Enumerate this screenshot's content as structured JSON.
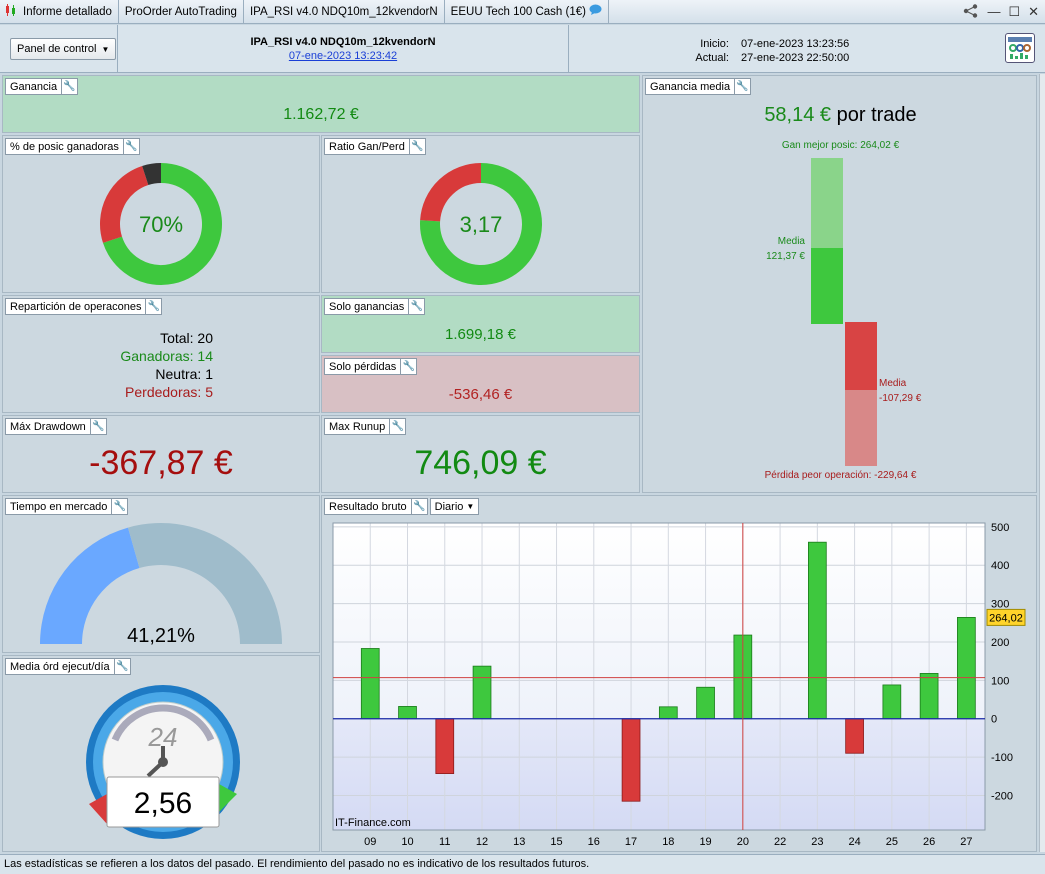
{
  "tabs": [
    {
      "label": "Informe detallado",
      "icon": "candlestick-icon"
    },
    {
      "label": "ProOrder AutoTrading"
    },
    {
      "label": "IPA_RSI v4.0 NDQ10m_12kvendorN"
    },
    {
      "label": "EEUU Tech 100 Cash (1€)",
      "icon": "chat-bubble-icon"
    }
  ],
  "window_controls": [
    "share-icon",
    "minimize-icon",
    "maximize-icon",
    "close-icon"
  ],
  "header": {
    "panel_button": "Panel de control",
    "strategy_title": "IPA_RSI v4.0 NDQ10m_12kvendorN",
    "strategy_date": "07-ene-2023 13:23:42",
    "inicio_label": "Inicio:",
    "inicio_value": "07-ene-2023 13:23:56",
    "actual_label": "Actual:",
    "actual_value": "27-ene-2023 22:50:00"
  },
  "ganancia": {
    "title": "Ganancia",
    "value": "1.162,72 €"
  },
  "pct_ganadoras": {
    "title": "% de posic ganadoras",
    "value": "70%",
    "win_fraction": 0.7,
    "neutral_fraction": 0.05,
    "loss_fraction": 0.25
  },
  "ratio": {
    "title": "Ratio Gan/Perd",
    "value": "3,17",
    "win_fraction": 0.76,
    "loss_fraction": 0.24
  },
  "reparticion": {
    "title": "Repartición de operacones",
    "total_label": "Total:",
    "total": "20",
    "ganadoras_label": "Ganadoras:",
    "ganadoras": "14",
    "neutra_label": "Neutra:",
    "neutra": "1",
    "perdedoras_label": "Perdedoras:",
    "perdedoras": "5"
  },
  "solo_ganancias": {
    "title": "Solo ganancias",
    "value": "1.699,18 €"
  },
  "solo_perdidas": {
    "title": "Solo pérdidas",
    "value": "-536,46 €"
  },
  "max_drawdown": {
    "title": "Máx Drawdown",
    "value": "-367,87 €"
  },
  "max_runup": {
    "title": "Max Runup",
    "value": "746,09 €"
  },
  "ganancia_media": {
    "title": "Ganancia media",
    "value": "58,14 €",
    "suffix": "por trade",
    "best_label": "Gan mejor posic: 264,02 €",
    "media_pos_label": "Media",
    "media_pos_value": "121,37 €",
    "media_neg_label": "Media",
    "media_neg_value": "-107,29 €",
    "worst_label": "Pérdida peor operación: -229,64 €"
  },
  "tiempo_mercado": {
    "title": "Tiempo en mercado",
    "value": "41,21%",
    "fraction": 0.4121
  },
  "media_ord": {
    "title": "Media órd ejecut/día",
    "clock_label": "24",
    "value": "2,56"
  },
  "resultado_bruto": {
    "title": "Resultado bruto",
    "period": "Diario",
    "watermark": "IT-Finance.com",
    "price_tag": "264,02"
  },
  "chart_data": {
    "type": "bar",
    "categories": [
      "09",
      "10",
      "11",
      "12",
      "13",
      "15",
      "16",
      "17",
      "18",
      "19",
      "20",
      "22",
      "23",
      "24",
      "25",
      "26",
      "27"
    ],
    "values": [
      183,
      32,
      -143,
      137,
      0,
      0,
      0,
      -215,
      31,
      82,
      218,
      0,
      460,
      -90,
      88,
      118,
      264
    ],
    "yticks": [
      500,
      400,
      300,
      200,
      100,
      0,
      -100,
      -200
    ],
    "ylim": [
      -290,
      510
    ],
    "reference_line": 107,
    "crosshair_category": "20",
    "colors": {
      "positive": "#3ec83e",
      "negative": "#d83a3a",
      "zero": "#1a2aa8",
      "ref": "#d04040"
    }
  },
  "footer": {
    "text": "Las estadísticas se refieren a los datos del pasado. El rendimiento del pasado no es indicativo de los resultados futuros."
  }
}
